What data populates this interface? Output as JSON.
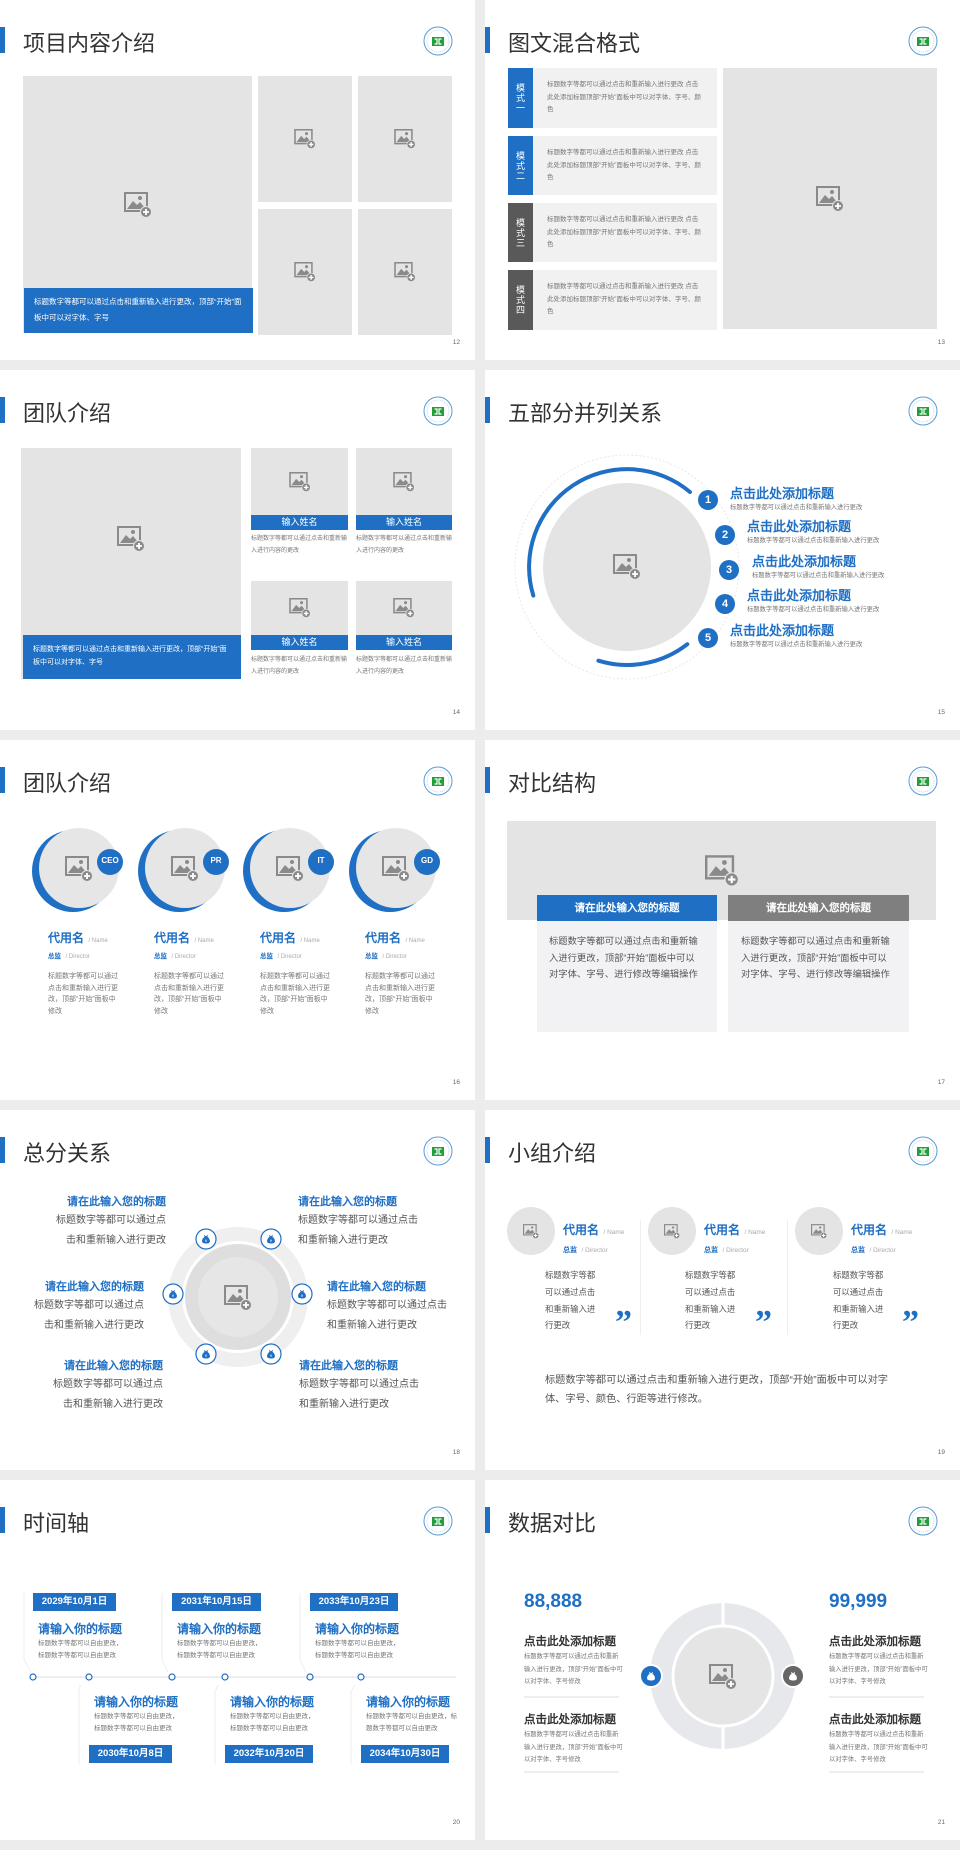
{
  "colors": {
    "accent": "#1f6fc4",
    "dark_tab": "#595959",
    "placeholder": "#e4e4e4",
    "background": "#ececec"
  },
  "icons": {
    "placeholder": "image-add-icon",
    "logo": "school-seal-logo",
    "money": "money-bag-icon",
    "quote": "closing-quote-icon"
  },
  "slides": [
    {
      "title": "项目内容介绍",
      "page": "12",
      "caption": "标题数字等都可以通过点击和重新输入进行更改，顶部“开始”面板中可以对字体、字号"
    },
    {
      "title": "图文混合格式",
      "page": "13",
      "modes": [
        {
          "label": "模式一",
          "text": "标题数字等都可以通过点击和重新输入进行更改 点击此处添加标题顶部“开始”面板中可以对字体、字号、颜色"
        },
        {
          "label": "模式二",
          "text": "标题数字等都可以通过点击和重新输入进行更改 点击此处添加标题顶部“开始”面板中可以对字体、字号、颜色"
        },
        {
          "label": "模式三",
          "text": "标题数字等都可以通过点击和重新输入进行更改 点击此处添加标题顶部“开始”面板中可以对字体、字号、颜色"
        },
        {
          "label": "模式四",
          "text": "标题数字等都可以通过点击和重新输入进行更改 点击此处添加标题顶部“开始”面板中可以对字体、字号、颜色"
        }
      ]
    },
    {
      "title": "团队介绍",
      "page": "14",
      "caption": "标题数字等都可以通过点击和重新输入进行更改，顶部“开始”面板中可以对字体、字号",
      "members": [
        {
          "name": "输入姓名",
          "text": "标题数字等都可以通过点击和重新输入进行内容的更改"
        },
        {
          "name": "输入姓名",
          "text": "标题数字等都可以通过点击和重新输入进行内容的更改"
        },
        {
          "name": "输入姓名",
          "text": "标题数字等都可以通过点击和重新输入进行内容的更改"
        },
        {
          "name": "输入姓名",
          "text": "标题数字等都可以通过点击和重新输入进行内容的更改"
        }
      ]
    },
    {
      "title": "五部分并列关系",
      "page": "15",
      "items": [
        {
          "num": "1",
          "title": "点击此处添加标题",
          "text": "标题数字等都可以通过点击和重新输入进行更改"
        },
        {
          "num": "2",
          "title": "点击此处添加标题",
          "text": "标题数字等都可以通过点击和重新输入进行更改"
        },
        {
          "num": "3",
          "title": "点击此处添加标题",
          "text": "标题数字等都可以通过点击和重新输入进行更改"
        },
        {
          "num": "4",
          "title": "点击此处添加标题",
          "text": "标题数字等都可以通过点击和重新输入进行更改"
        },
        {
          "num": "5",
          "title": "点击此处添加标题",
          "text": "标题数字等都可以通过点击和重新输入进行更改"
        }
      ]
    },
    {
      "title": "团队介绍",
      "page": "16",
      "members": [
        {
          "badge": "CEO",
          "name": "代用名",
          "name_en": "/ Name",
          "role": "总监",
          "role_en": "/ Director",
          "text": "标题数字等都可以通过点击和重新输入进行更改，顶部“开始”面板中修改"
        },
        {
          "badge": "PR",
          "name": "代用名",
          "name_en": "/ Name",
          "role": "总监",
          "role_en": "/ Director",
          "text": "标题数字等都可以通过点击和重新输入进行更改，顶部“开始”面板中修改"
        },
        {
          "badge": "IT",
          "name": "代用名",
          "name_en": "/ Name",
          "role": "总监",
          "role_en": "/ Director",
          "text": "标题数字等都可以通过点击和重新输入进行更改，顶部“开始”面板中修改"
        },
        {
          "badge": "GD",
          "name": "代用名",
          "name_en": "/ Name",
          "role": "总监",
          "role_en": "/ Director",
          "text": "标题数字等都可以通过点击和重新输入进行更改，顶部“开始”面板中修改"
        }
      ]
    },
    {
      "title": "对比结构",
      "page": "17",
      "cards": [
        {
          "heading": "请在此处输入您的标题",
          "text": "标题数字等都可以通过点击和重新输入进行更改，顶部“开始”面板中可以对字体、字号、进行修改等编辑操作"
        },
        {
          "heading": "请在此处输入您的标题",
          "text": "标题数字等都可以通过点击和重新输入进行更改，顶部“开始”面板中可以对字体、字号、进行修改等编辑操作"
        }
      ]
    },
    {
      "title": "总分关系",
      "page": "18",
      "items": [
        {
          "title": "请在此输入您的标题",
          "text": "标题数字等都可以通过点击和重新输入进行更改"
        },
        {
          "title": "请在此输入您的标题",
          "text": "标题数字等都可以通过点击和重新输入进行更改"
        },
        {
          "title": "请在此输入您的标题",
          "text": "标题数字等都可以通过点击和重新输入进行更改"
        },
        {
          "title": "请在此输入您的标题",
          "text": "标题数字等都可以通过点击和重新输入进行更改"
        },
        {
          "title": "请在此输入您的标题",
          "text": "标题数字等都可以通过点击和重新输入进行更改"
        },
        {
          "title": "请在此输入您的标题",
          "text": "标题数字等都可以通过点击和重新输入进行更改"
        }
      ]
    },
    {
      "title": "小组介绍",
      "page": "19",
      "members": [
        {
          "name": "代用名",
          "name_en": "/ Name",
          "role": "总监",
          "role_en": "/ Director",
          "text": "标题数字等都可以通过点击和重新输入进行更改"
        },
        {
          "name": "代用名",
          "name_en": "/ Name",
          "role": "总监",
          "role_en": "/ Director",
          "text": "标题数字等都可以通过点击和重新输入进行更改"
        },
        {
          "name": "代用名",
          "name_en": "/ Name",
          "role": "总监",
          "role_en": "/ Director",
          "text": "标题数字等都可以通过点击和重新输入进行更改"
        }
      ],
      "quote_mark": "”",
      "summary": "标题数字等都可以通过点击和重新输入进行更改，顶部“开始”面板中可以对字体、字号、颜色、行距等进行修改。"
    },
    {
      "title": "时间轴",
      "page": "20",
      "events": [
        {
          "date": "2029年10月1日",
          "title": "请输入你的标题",
          "text": "标题数字等都可以自由更改，标题数字等都可以自由更改"
        },
        {
          "date": "2030年10月8日",
          "title": "请输入你的标题",
          "text": "标题数字等都可以自由更改，标题数字等都可以自由更改"
        },
        {
          "date": "2031年10月15日",
          "title": "请输入你的标题",
          "text": "标题数字等都可以自由更改，标题数字等都可以自由更改"
        },
        {
          "date": "2032年10月20日",
          "title": "请输入你的标题",
          "text": "标题数字等都可以自由更改，标题数字等都可以自由更改"
        },
        {
          "date": "2033年10月23日",
          "title": "请输入你的标题",
          "text": "标题数字等都可以自由更改，标题数字等都可以自由更改"
        },
        {
          "date": "2034年10月30日",
          "title": "请输入你的标题",
          "text": "标题数字等都可以自由更改，标题数字等都可以自由更改"
        }
      ]
    },
    {
      "title": "数据对比",
      "page": "21",
      "left": {
        "value": "88,888",
        "items": [
          {
            "title": "点击此处添加标题",
            "text": "标题数字等都可以通过点击和重新输入进行更改，顶部“开始”面板中可以对字体、字号修改"
          },
          {
            "title": "点击此处添加标题",
            "text": "标题数字等都可以通过点击和重新输入进行更改，顶部“开始”面板中可以对字体、字号修改"
          }
        ]
      },
      "right": {
        "value": "99,999",
        "items": [
          {
            "title": "点击此处添加标题",
            "text": "标题数字等都可以通过点击和重新输入进行更改，顶部“开始”面板中可以对字体、字号修改"
          },
          {
            "title": "点击此处添加标题",
            "text": "标题数字等都可以通过点击和重新输入进行更改，顶部“开始”面板中可以对字体、字号修改"
          }
        ]
      }
    }
  ]
}
